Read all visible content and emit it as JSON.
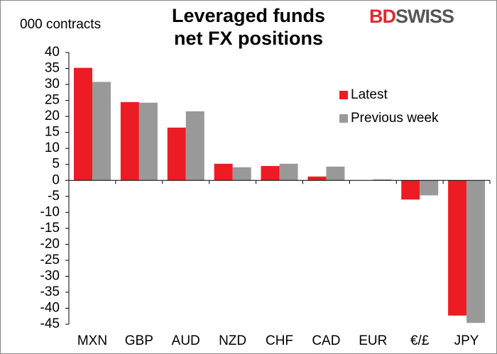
{
  "chart_data": {
    "type": "bar",
    "title": "Leveraged funds net FX positions",
    "ylabel": "000 contracts",
    "logo": {
      "first": "BD",
      "second": "SWISS"
    },
    "categories": [
      "MXN",
      "GBP",
      "AUD",
      "NZD",
      "CHF",
      "CAD",
      "EUR",
      "€/£",
      "JPY"
    ],
    "series": [
      {
        "name": "Latest",
        "color": "#ed1c24",
        "values": [
          35.2,
          24.5,
          16.5,
          5.2,
          4.5,
          1.2,
          0,
          -6,
          -42.3
        ]
      },
      {
        "name": "Previous week",
        "color": "#999999",
        "values": [
          30.8,
          24.3,
          21.6,
          4.1,
          5.2,
          4.3,
          0.3,
          -4.7,
          -44.6
        ]
      }
    ],
    "ylim": [
      -45,
      40
    ],
    "yticks": [
      -45,
      -40,
      -35,
      -30,
      -25,
      -20,
      -15,
      -10,
      -5,
      0,
      5,
      10,
      15,
      20,
      25,
      30,
      35,
      40
    ],
    "grid": false,
    "legend": "upper right"
  }
}
